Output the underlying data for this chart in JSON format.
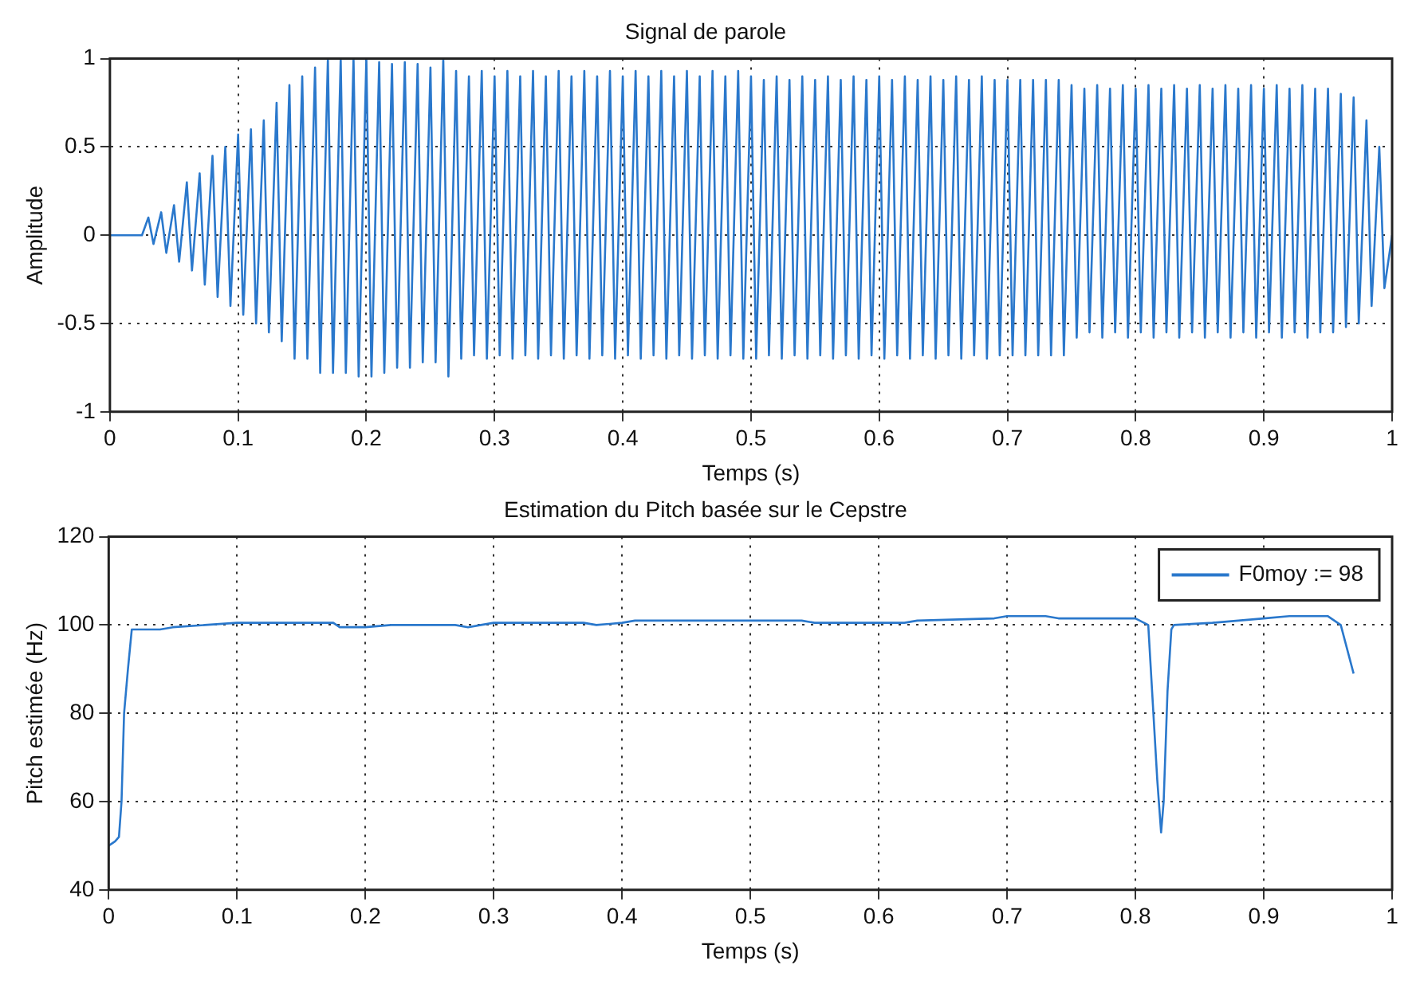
{
  "chart_data": [
    {
      "type": "line",
      "title": "Signal de parole",
      "xlabel": "Temps (s)",
      "ylabel": "Amplitude",
      "xlim": [
        0,
        1
      ],
      "ylim": [
        -1,
        1
      ],
      "xticks": [
        0,
        0.1,
        0.2,
        0.3,
        0.4,
        0.5,
        0.6,
        0.7,
        0.8,
        0.9,
        1
      ],
      "yticks": [
        -1,
        -0.5,
        0,
        0.5,
        1
      ],
      "grid": true,
      "legend": false,
      "marker": "none",
      "line_style": "solid",
      "series": [
        {
          "color": "#2a78cc",
          "x": [
            0,
            0.025,
            0.03,
            0.034,
            0.04,
            0.044,
            0.05,
            0.054,
            0.06,
            0.064,
            0.07,
            0.074,
            0.08,
            0.084,
            0.09,
            0.094,
            0.1,
            0.104,
            0.11,
            0.114,
            0.12,
            0.124,
            0.13,
            0.134,
            0.14,
            0.144,
            0.15,
            0.154,
            0.16,
            0.164,
            0.17,
            0.174,
            0.18,
            0.184,
            0.19,
            0.194,
            0.2,
            0.204,
            0.21,
            0.214,
            0.22,
            0.224,
            0.23,
            0.234,
            0.24,
            0.244,
            0.25,
            0.254,
            0.26,
            0.264,
            0.27,
            0.274,
            0.28,
            0.284,
            0.29,
            0.294,
            0.3,
            0.304,
            0.31,
            0.314,
            0.32,
            0.324,
            0.33,
            0.334,
            0.34,
            0.344,
            0.35,
            0.354,
            0.36,
            0.364,
            0.37,
            0.374,
            0.38,
            0.384,
            0.39,
            0.394,
            0.4,
            0.404,
            0.41,
            0.414,
            0.42,
            0.424,
            0.43,
            0.434,
            0.44,
            0.444,
            0.45,
            0.454,
            0.46,
            0.464,
            0.47,
            0.474,
            0.48,
            0.484,
            0.49,
            0.494,
            0.5,
            0.504,
            0.51,
            0.514,
            0.52,
            0.524,
            0.53,
            0.534,
            0.54,
            0.544,
            0.55,
            0.554,
            0.56,
            0.564,
            0.57,
            0.574,
            0.58,
            0.584,
            0.59,
            0.594,
            0.6,
            0.604,
            0.61,
            0.614,
            0.62,
            0.624,
            0.63,
            0.634,
            0.64,
            0.644,
            0.65,
            0.654,
            0.66,
            0.664,
            0.67,
            0.674,
            0.68,
            0.684,
            0.69,
            0.694,
            0.7,
            0.704,
            0.71,
            0.714,
            0.72,
            0.724,
            0.73,
            0.734,
            0.74,
            0.744,
            0.75,
            0.754,
            0.76,
            0.764,
            0.77,
            0.774,
            0.78,
            0.784,
            0.79,
            0.794,
            0.8,
            0.804,
            0.81,
            0.814,
            0.82,
            0.824,
            0.83,
            0.834,
            0.84,
            0.844,
            0.85,
            0.854,
            0.86,
            0.864,
            0.87,
            0.874,
            0.88,
            0.884,
            0.89,
            0.894,
            0.9,
            0.904,
            0.91,
            0.914,
            0.92,
            0.924,
            0.93,
            0.934,
            0.94,
            0.944,
            0.95,
            0.954,
            0.96,
            0.964,
            0.97,
            0.974,
            0.98,
            0.984,
            0.99,
            0.994,
            1
          ],
          "values": [
            0,
            0,
            0.1,
            -0.05,
            0.13,
            -0.1,
            0.17,
            -0.15,
            0.3,
            -0.2,
            0.35,
            -0.28,
            0.45,
            -0.35,
            0.5,
            -0.4,
            0.57,
            -0.45,
            0.6,
            -0.5,
            0.65,
            -0.55,
            0.75,
            -0.6,
            0.85,
            -0.7,
            0.9,
            -0.7,
            0.95,
            -0.78,
            1,
            -0.78,
            1,
            -0.78,
            1,
            -0.8,
            1,
            -0.8,
            0.98,
            -0.78,
            0.97,
            -0.75,
            0.98,
            -0.75,
            0.97,
            -0.72,
            0.95,
            -0.72,
            1,
            -0.8,
            0.93,
            -0.7,
            0.9,
            -0.68,
            0.93,
            -0.7,
            0.9,
            -0.68,
            0.93,
            -0.7,
            0.9,
            -0.68,
            0.93,
            -0.7,
            0.9,
            -0.68,
            0.93,
            -0.7,
            0.9,
            -0.68,
            0.93,
            -0.7,
            0.9,
            -0.68,
            0.93,
            -0.7,
            0.9,
            -0.68,
            0.93,
            -0.7,
            0.9,
            -0.68,
            0.93,
            -0.7,
            0.9,
            -0.68,
            0.93,
            -0.7,
            0.9,
            -0.68,
            0.93,
            -0.7,
            0.9,
            -0.68,
            0.93,
            -0.7,
            0.9,
            -0.7,
            0.88,
            -0.68,
            0.9,
            -0.7,
            0.88,
            -0.68,
            0.9,
            -0.7,
            0.88,
            -0.68,
            0.9,
            -0.7,
            0.88,
            -0.68,
            0.9,
            -0.7,
            0.88,
            -0.68,
            0.9,
            -0.7,
            0.88,
            -0.68,
            0.9,
            -0.7,
            0.88,
            -0.68,
            0.9,
            -0.7,
            0.88,
            -0.68,
            0.9,
            -0.7,
            0.88,
            -0.68,
            0.9,
            -0.7,
            0.88,
            -0.68,
            0.88,
            -0.68,
            0.88,
            -0.68,
            0.88,
            -0.68,
            0.88,
            -0.68,
            0.88,
            -0.68,
            0.85,
            -0.58,
            0.83,
            -0.55,
            0.85,
            -0.58,
            0.83,
            -0.55,
            0.85,
            -0.58,
            0.83,
            -0.55,
            0.85,
            -0.58,
            0.83,
            -0.55,
            0.85,
            -0.58,
            0.83,
            -0.55,
            0.85,
            -0.58,
            0.83,
            -0.55,
            0.85,
            -0.58,
            0.83,
            -0.55,
            0.85,
            -0.58,
            0.83,
            -0.55,
            0.85,
            -0.58,
            0.83,
            -0.55,
            0.85,
            -0.58,
            0.83,
            -0.55,
            0.83,
            -0.55,
            0.8,
            -0.52,
            0.78,
            -0.5,
            0.65,
            -0.4,
            0.5,
            -0.3,
            0
          ]
        }
      ]
    },
    {
      "type": "line",
      "title": "Estimation du Pitch basée sur le Cepstre",
      "xlabel": "Temps (s)",
      "ylabel": "Pitch estimée (Hz)",
      "xlim": [
        0,
        1
      ],
      "ylim": [
        40,
        120
      ],
      "xticks": [
        0,
        0.1,
        0.2,
        0.3,
        0.4,
        0.5,
        0.6,
        0.7,
        0.8,
        0.9,
        1
      ],
      "yticks": [
        40,
        60,
        80,
        100,
        120
      ],
      "grid": true,
      "legend": "top right",
      "marker": "none",
      "line_style": "solid",
      "series": [
        {
          "name": "F0moy := 98",
          "color": "#2a78cc",
          "x": [
            0,
            0.005,
            0.008,
            0.01,
            0.012,
            0.015,
            0.018,
            0.04,
            0.05,
            0.075,
            0.1,
            0.175,
            0.18,
            0.2,
            0.22,
            0.27,
            0.28,
            0.29,
            0.3,
            0.37,
            0.38,
            0.4,
            0.41,
            0.46,
            0.5,
            0.54,
            0.55,
            0.58,
            0.6,
            0.62,
            0.63,
            0.69,
            0.7,
            0.73,
            0.74,
            0.8,
            0.81,
            0.812,
            0.817,
            0.82,
            0.822,
            0.825,
            0.828,
            0.83,
            0.86,
            0.9,
            0.92,
            0.95,
            0.96,
            0.97
          ],
          "values": [
            50,
            51,
            52,
            60,
            80,
            90,
            99,
            99,
            99.5,
            100,
            100.5,
            100.5,
            99.5,
            99.5,
            100,
            100,
            99.5,
            100,
            100.5,
            100.5,
            100,
            100.5,
            101,
            101,
            101,
            101,
            100.5,
            100.5,
            100.5,
            100.5,
            101,
            101.5,
            102,
            102,
            101.5,
            101.5,
            100,
            90,
            65,
            53,
            60,
            85,
            99,
            100,
            100.5,
            101.5,
            102,
            102,
            100,
            89
          ]
        }
      ]
    }
  ]
}
